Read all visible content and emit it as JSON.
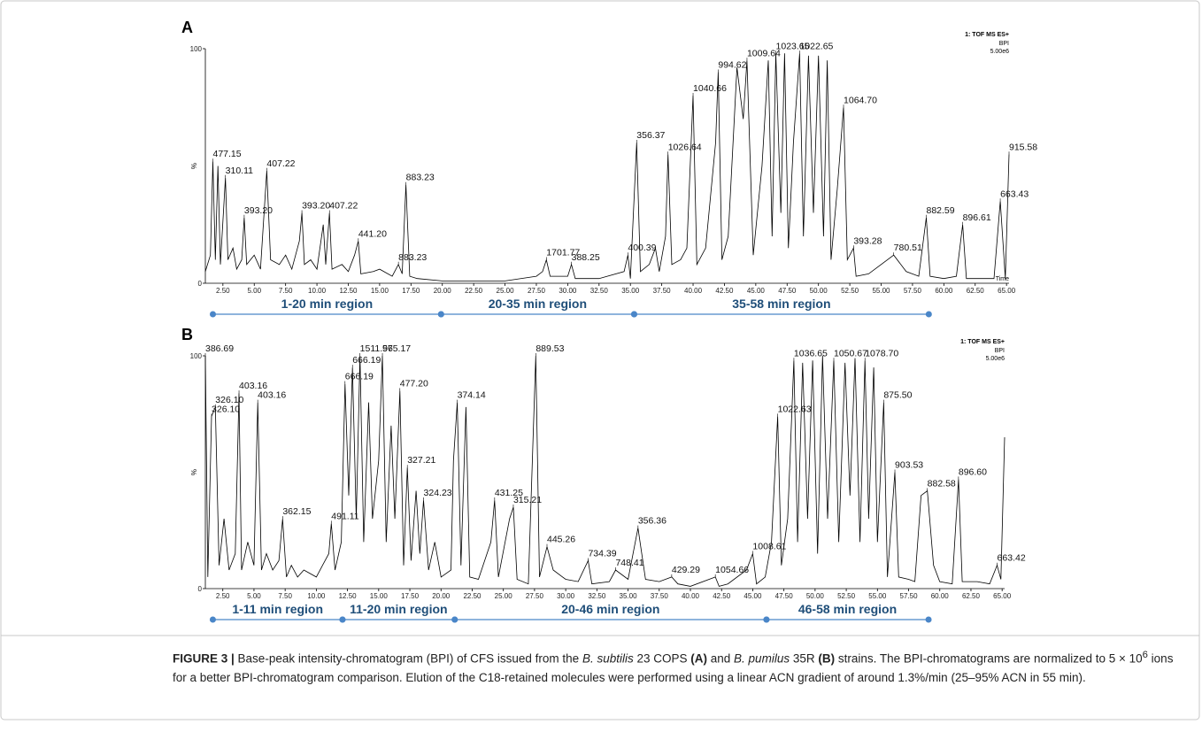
{
  "chart_data": [
    {
      "type": "line",
      "panel": "A",
      "instrument": "1: TOF MS ES+",
      "signal": "BPI",
      "scale": "5.00e6",
      "xlabel": "Time",
      "ylabel": "%",
      "xlim": [
        1.1,
        65.2
      ],
      "ylim": [
        0,
        100
      ],
      "xticks": [
        {
          "value": 2.5,
          "label": "2.50"
        },
        {
          "value": 5,
          "label": "5.00"
        },
        {
          "value": 7.5,
          "label": "7.50"
        },
        {
          "value": 10,
          "label": "10.00"
        },
        {
          "value": 12.5,
          "label": "12.50"
        },
        {
          "value": 15,
          "label": "15.00"
        },
        {
          "value": 17.5,
          "label": "17.50"
        },
        {
          "value": 20,
          "label": "20.00"
        },
        {
          "value": 22.5,
          "label": "22.50"
        },
        {
          "value": 25,
          "label": "25.00"
        },
        {
          "value": 27.5,
          "label": "27.50"
        },
        {
          "value": 30,
          "label": "30.00"
        },
        {
          "value": 32.5,
          "label": "32.50"
        },
        {
          "value": 35,
          "label": "35.00"
        },
        {
          "value": 37.5,
          "label": "37.50"
        },
        {
          "value": 40,
          "label": "40.00"
        },
        {
          "value": 42.5,
          "label": "42.50"
        },
        {
          "value": 45,
          "label": "45.00"
        },
        {
          "value": 47.5,
          "label": "47.50"
        },
        {
          "value": 50,
          "label": "50.00"
        },
        {
          "value": 52.5,
          "label": "52.50"
        },
        {
          "value": 55,
          "label": "55.00"
        },
        {
          "value": 57.5,
          "label": "57.50"
        },
        {
          "value": 60,
          "label": "60.00"
        },
        {
          "value": 62.5,
          "label": "62.50"
        },
        {
          "value": 65,
          "label": "65.00"
        }
      ],
      "yticks": [
        0,
        100
      ],
      "series": [
        {
          "color": "#000000",
          "x": [
            1.1,
            1.5,
            1.7,
            1.9,
            2.1,
            2.3,
            2.7,
            2.9,
            3.3,
            3.6,
            4.0,
            4.2,
            4.4,
            5.0,
            5.5,
            6.0,
            6.3,
            7.0,
            7.5,
            8.0,
            8.6,
            8.8,
            9.0,
            9.5,
            10.0,
            10.5,
            10.7,
            11.0,
            11.2,
            12.0,
            12.5,
            13.0,
            13.3,
            13.5,
            14.5,
            15.0,
            16.0,
            16.5,
            16.8,
            17.1,
            17.4,
            18.0,
            20.0,
            22.5,
            25.0,
            27.5,
            28.0,
            28.3,
            28.6,
            30.0,
            30.3,
            30.6,
            32.5,
            34.5,
            34.8,
            35.0,
            35.5,
            35.8,
            36.5,
            37.0,
            37.3,
            37.8,
            38.0,
            38.3,
            39.0,
            39.5,
            40.0,
            40.3,
            41.0,
            41.8,
            42.0,
            42.3,
            42.8,
            43.5,
            44.0,
            44.3,
            44.8,
            45.5,
            46.0,
            46.3,
            46.6,
            47.0,
            47.3,
            47.6,
            48.0,
            48.5,
            48.8,
            49.2,
            49.6,
            50.0,
            50.4,
            50.7,
            51.0,
            51.5,
            52.0,
            52.3,
            52.8,
            53.0,
            54.0,
            55.0,
            56.0,
            57.0,
            58.0,
            58.6,
            58.9,
            60.0,
            61.0,
            61.5,
            61.8,
            63.0,
            64.0,
            64.5,
            64.9,
            65.2
          ],
          "values": [
            5,
            12,
            52,
            10,
            50,
            8,
            45,
            10,
            15,
            6,
            10,
            28,
            8,
            12,
            6,
            48,
            10,
            8,
            12,
            6,
            18,
            30,
            8,
            10,
            6,
            25,
            8,
            30,
            6,
            8,
            5,
            12,
            18,
            4,
            5,
            6,
            3,
            8,
            4,
            42,
            3,
            2,
            1,
            1,
            1,
            3,
            5,
            10,
            3,
            3,
            8,
            2,
            2,
            5,
            12,
            2,
            60,
            5,
            8,
            15,
            5,
            20,
            55,
            8,
            10,
            15,
            80,
            8,
            15,
            60,
            90,
            10,
            20,
            92,
            70,
            95,
            12,
            50,
            95,
            20,
            98,
            30,
            98,
            15,
            60,
            98,
            20,
            97,
            30,
            97,
            20,
            95,
            10,
            40,
            75,
            10,
            15,
            3,
            4,
            8,
            12,
            5,
            3,
            28,
            3,
            2,
            3,
            25,
            2,
            2,
            2,
            35,
            2,
            55
          ]
        }
      ],
      "annotations": [
        {
          "text": "477.15",
          "x": 1.7,
          "y": 52
        },
        {
          "text": "310.11",
          "x": 2.7,
          "y": 45
        },
        {
          "text": "393.20",
          "x": 4.2,
          "y": 28
        },
        {
          "text": "407.22",
          "x": 6.0,
          "y": 48
        },
        {
          "text": "393.20",
          "x": 8.8,
          "y": 30
        },
        {
          "text": "407.22",
          "x": 11.0,
          "y": 30
        },
        {
          "text": "441.20",
          "x": 13.3,
          "y": 18
        },
        {
          "text": "883.23",
          "x": 16.5,
          "y": 8
        },
        {
          "text": "883.23",
          "x": 17.1,
          "y": 42
        },
        {
          "text": "1701.77",
          "x": 28.3,
          "y": 10
        },
        {
          "text": "388.25",
          "x": 30.3,
          "y": 8
        },
        {
          "text": "400.39",
          "x": 34.8,
          "y": 12
        },
        {
          "text": "356.37",
          "x": 35.5,
          "y": 60
        },
        {
          "text": "1026.64",
          "x": 38.0,
          "y": 55
        },
        {
          "text": "1040.66",
          "x": 40.0,
          "y": 80
        },
        {
          "text": "994.62",
          "x": 42.0,
          "y": 90
        },
        {
          "text": "1009.64",
          "x": 44.3,
          "y": 95
        },
        {
          "text": "1023.65",
          "x": 46.6,
          "y": 98
        },
        {
          "text": "1022.65",
          "x": 48.5,
          "y": 98
        },
        {
          "text": "1064.70",
          "x": 52.0,
          "y": 75
        },
        {
          "text": "393.28",
          "x": 52.8,
          "y": 15
        },
        {
          "text": "780.51",
          "x": 56.0,
          "y": 12
        },
        {
          "text": "882.59",
          "x": 58.6,
          "y": 28
        },
        {
          "text": "896.61",
          "x": 61.5,
          "y": 25
        },
        {
          "text": "663.43",
          "x": 64.5,
          "y": 35
        },
        {
          "text": "915.58",
          "x": 65.2,
          "y": 55
        }
      ],
      "region_color": "#4a86c8",
      "regions": [
        {
          "label": "1-20 min region",
          "start": 1.7,
          "end": 19.9
        },
        {
          "label": "20-35 min region",
          "start": 19.9,
          "end": 35.3
        },
        {
          "label": "35-58 min region",
          "start": 35.3,
          "end": 58.8
        }
      ]
    },
    {
      "type": "line",
      "panel": "B",
      "instrument": "1: TOF MS ES+",
      "signal": "BPI",
      "scale": "5.00e6",
      "ylabel": "%",
      "xlim": [
        1.1,
        65.2
      ],
      "ylim": [
        0,
        100
      ],
      "xticks": [
        {
          "value": 2.5,
          "label": "2.50"
        },
        {
          "value": 5,
          "label": "5.00"
        },
        {
          "value": 7.5,
          "label": "7.50"
        },
        {
          "value": 10,
          "label": "10.00"
        },
        {
          "value": 12.5,
          "label": "12.50"
        },
        {
          "value": 15,
          "label": "15.00"
        },
        {
          "value": 17.5,
          "label": "17.50"
        },
        {
          "value": 20,
          "label": "20.00"
        },
        {
          "value": 22.5,
          "label": "22.50"
        },
        {
          "value": 25,
          "label": "25.00"
        },
        {
          "value": 27.5,
          "label": "27.50"
        },
        {
          "value": 30,
          "label": "30.00"
        },
        {
          "value": 32.5,
          "label": "32.50"
        },
        {
          "value": 35,
          "label": "35.00"
        },
        {
          "value": 37.5,
          "label": "37.50"
        },
        {
          "value": 40,
          "label": "40.00"
        },
        {
          "value": 42.5,
          "label": "42.50"
        },
        {
          "value": 45,
          "label": "45.00"
        },
        {
          "value": 47.5,
          "label": "47.50"
        },
        {
          "value": 50,
          "label": "50.00"
        },
        {
          "value": 52.5,
          "label": "52.50"
        },
        {
          "value": 55,
          "label": "55.00"
        },
        {
          "value": 57.5,
          "label": "57.50"
        },
        {
          "value": 60,
          "label": "60.00"
        },
        {
          "value": 62.5,
          "label": "62.50"
        },
        {
          "value": 65,
          "label": "65.00"
        }
      ],
      "yticks": [
        0,
        100
      ],
      "series": [
        {
          "color": "#000000",
          "x": [
            1.1,
            1.3,
            1.6,
            1.9,
            2.2,
            2.6,
            3.0,
            3.5,
            3.8,
            4.0,
            4.5,
            5.0,
            5.3,
            5.6,
            6.0,
            6.5,
            7.0,
            7.3,
            7.6,
            8.0,
            8.5,
            9.0,
            10.0,
            10.5,
            11.0,
            11.2,
            11.5,
            12.0,
            12.3,
            12.6,
            12.9,
            13.2,
            13.5,
            13.8,
            14.2,
            14.5,
            15.0,
            15.3,
            15.6,
            16.0,
            16.3,
            16.7,
            17.0,
            17.3,
            17.6,
            18.0,
            18.3,
            18.6,
            19.0,
            19.5,
            20.0,
            20.8,
            21.0,
            21.3,
            21.6,
            22.0,
            22.3,
            23.0,
            24.0,
            24.3,
            24.6,
            25.5,
            25.8,
            26.1,
            27.0,
            27.6,
            27.9,
            28.5,
            29.0,
            30.0,
            31.0,
            31.8,
            32.1,
            33.5,
            34.0,
            35.0,
            35.8,
            36.4,
            37.5,
            38.5,
            39.0,
            40.0,
            42.0,
            42.3,
            43.0,
            44.5,
            45.0,
            45.3,
            46.0,
            46.5,
            47.0,
            47.3,
            47.8,
            48.3,
            48.6,
            49.0,
            49.4,
            49.8,
            50.2,
            50.6,
            51.0,
            51.5,
            51.9,
            52.4,
            52.8,
            53.2,
            53.6,
            54.0,
            54.3,
            54.7,
            55.0,
            55.5,
            55.8,
            56.4,
            56.7,
            57.5,
            58.0,
            58.5,
            59.0,
            59.5,
            60.0,
            61.0,
            61.5,
            61.8,
            63.0,
            64.0,
            64.6,
            64.9,
            65.2
          ],
          "values": [
            100,
            5,
            74,
            78,
            10,
            30,
            8,
            15,
            84,
            8,
            20,
            10,
            80,
            8,
            15,
            8,
            12,
            30,
            5,
            10,
            5,
            8,
            5,
            10,
            15,
            28,
            8,
            20,
            88,
            40,
            95,
            30,
            100,
            20,
            80,
            30,
            55,
            100,
            20,
            70,
            30,
            85,
            10,
            52,
            12,
            42,
            15,
            38,
            8,
            20,
            5,
            8,
            55,
            80,
            10,
            78,
            5,
            4,
            20,
            38,
            5,
            30,
            35,
            4,
            2,
            100,
            5,
            18,
            8,
            4,
            3,
            12,
            2,
            3,
            8,
            4,
            26,
            4,
            3,
            5,
            2,
            1,
            5,
            1,
            2,
            8,
            15,
            2,
            5,
            20,
            74,
            10,
            30,
            98,
            20,
            97,
            30,
            98,
            15,
            100,
            30,
            98,
            20,
            97,
            40,
            99,
            20,
            98,
            30,
            95,
            20,
            80,
            5,
            50,
            5,
            4,
            3,
            40,
            42,
            10,
            3,
            2,
            47,
            3,
            3,
            2,
            10,
            4,
            65
          ]
        }
      ],
      "annotations": [
        {
          "text": "386.69",
          "x": 1.1,
          "y": 100
        },
        {
          "text": "326.10",
          "x": 1.6,
          "y": 74
        },
        {
          "text": "326.10",
          "x": 1.9,
          "y": 78
        },
        {
          "text": "403.16",
          "x": 3.8,
          "y": 84
        },
        {
          "text": "403.16",
          "x": 5.3,
          "y": 80
        },
        {
          "text": "362.15",
          "x": 7.3,
          "y": 30
        },
        {
          "text": "491.11",
          "x": 11.2,
          "y": 28
        },
        {
          "text": "666.19",
          "x": 12.3,
          "y": 88
        },
        {
          "text": "666.19",
          "x": 12.9,
          "y": 95
        },
        {
          "text": "1511.96",
          "x": 13.5,
          "y": 100
        },
        {
          "text": "575.17",
          "x": 15.3,
          "y": 100
        },
        {
          "text": "477.20",
          "x": 16.7,
          "y": 85
        },
        {
          "text": "327.21",
          "x": 17.3,
          "y": 52
        },
        {
          "text": "324.23",
          "x": 18.6,
          "y": 38
        },
        {
          "text": "374.14",
          "x": 21.3,
          "y": 80
        },
        {
          "text": "431.25",
          "x": 24.3,
          "y": 38
        },
        {
          "text": "315.21",
          "x": 25.8,
          "y": 35
        },
        {
          "text": "889.53",
          "x": 27.6,
          "y": 100
        },
        {
          "text": "445.26",
          "x": 28.5,
          "y": 18
        },
        {
          "text": "734.39",
          "x": 31.8,
          "y": 12
        },
        {
          "text": "748.41",
          "x": 34.0,
          "y": 8
        },
        {
          "text": "356.36",
          "x": 35.8,
          "y": 26
        },
        {
          "text": "429.29",
          "x": 38.5,
          "y": 5
        },
        {
          "text": "1054.66",
          "x": 42.0,
          "y": 5
        },
        {
          "text": "1008.61",
          "x": 45.0,
          "y": 15
        },
        {
          "text": "1022.63",
          "x": 47.0,
          "y": 74
        },
        {
          "text": "1036.65",
          "x": 48.3,
          "y": 98
        },
        {
          "text": "1050.67",
          "x": 51.5,
          "y": 98
        },
        {
          "text": "1078.70",
          "x": 54.0,
          "y": 98
        },
        {
          "text": "875.50",
          "x": 55.5,
          "y": 80
        },
        {
          "text": "903.53",
          "x": 56.4,
          "y": 50
        },
        {
          "text": "882.58",
          "x": 59.0,
          "y": 42
        },
        {
          "text": "896.60",
          "x": 61.5,
          "y": 47
        },
        {
          "text": "663.42",
          "x": 64.6,
          "y": 10
        }
      ],
      "region_color": "#4a86c8",
      "regions": [
        {
          "label": "1-11 min region",
          "start": 1.7,
          "end": 12.1
        },
        {
          "label": "11-20 min region",
          "start": 12.1,
          "end": 21.1
        },
        {
          "label": "20-46 min region",
          "start": 21.1,
          "end": 46.1
        },
        {
          "label": "46-58 min region",
          "start": 46.1,
          "end": 59.1
        }
      ]
    }
  ],
  "caption": [
    "FIGURE 3 |",
    " Base-peak intensity-chromatogram (BPI) of CFS issued from the ",
    "B. subtilis",
    " 23 COPS ",
    "(A)",
    " and ",
    "B. pumilus",
    " 35R ",
    "(B)",
    " strains. The BPI-chromatograms are normalized to 5 × 10",
    "6",
    " ions for a better BPI-chromatogram comparison. Elution of the C18-retained molecules were performed using a linear ACN gradient of around 1.3%/min (25–95% ACN in 55 min)."
  ]
}
